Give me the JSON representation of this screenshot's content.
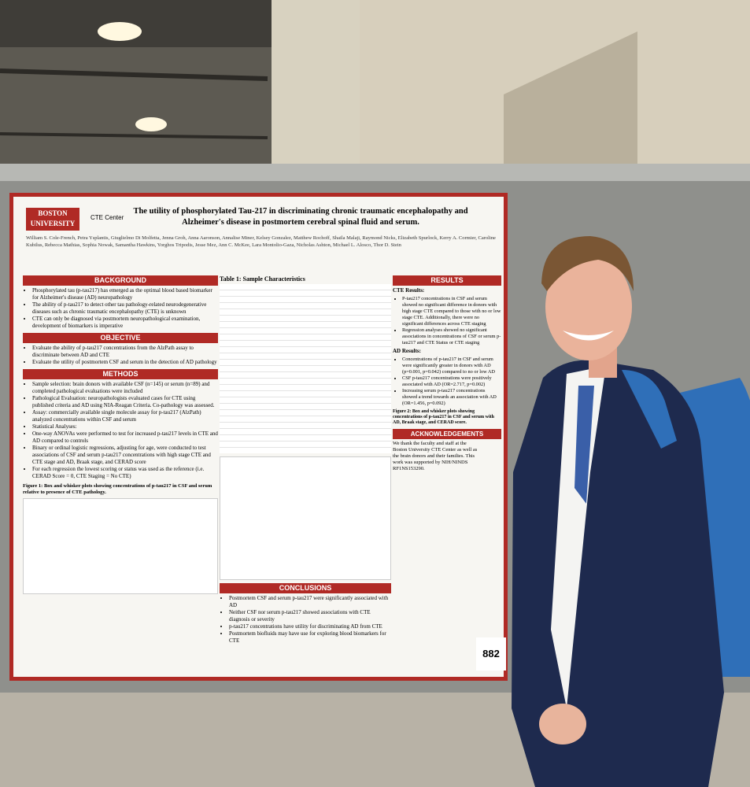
{
  "poster": {
    "logo": "BOSTON UNIVERSITY",
    "center": "CTE Center",
    "title": "The utility of phosphorylated Tau-217 in discriminating chronic traumatic encephalopathy and Alzheimer's disease in postmortem cerebral spinal fluid and serum.",
    "authors": "William S. Cole-French, Petra Ysplantis, Giuglielmo Di Molfetta, Jenna Groh, Anna Aaronson, Annalise Miner, Kelsey Gonzalez, Matthew Rochoff, Shaila Malaji, Raymond Nicks, Elizabeth Spurlock, Kerry A. Cormier, Caroline Kubilus, Rebecca Mathias, Sophia Nowak, Samantha Hawkins, Yorghos Tripodis, Jesse Mez, Ann C. McKee, Lara Montolio-Gaza, Nicholas Ashton, Michael L. Alosco, Thor D. Stein",
    "background": {
      "heading": "BACKGROUND",
      "items": [
        "Phosphorylated tau (p-tau217) has emerged as the optimal blood based biomarker for Alzheimer's disease (AD) neuropathology",
        "The ability of p-tau217 to detect other tau pathology-related neurodegenerative diseases such as chronic traumatic encephalopathy (CTE) is unknown",
        "CTE can only be diagnosed via postmortem neuropathological examination, development of biomarkers is imperative"
      ]
    },
    "objective": {
      "heading": "OBJECTIVE",
      "items": [
        "Evaluate the ability of p-tau217 concentrations from the AlzPath assay to discriminate between AD and CTE",
        "Evaluate the utility of postmortem CSF and serum in the detection of AD pathology"
      ]
    },
    "methods": {
      "heading": "METHODS",
      "items": [
        "Sample selection: brain donors with available CSF (n=145) or serum (n=89) and completed pathological evaluations were included",
        "Pathological Evaluation: neuropathologists evaluated cases for CTE using published criteria and AD using NIA-Reagan Criteria. Co-pathology was assessed.",
        "Assay: commercially available single molecule assay for p-tau217 (AlzPath) analyzed concentrations within CSF and serum",
        "Statistical Analyses:",
        "One-way ANOVAs were performed to test for increased p-tau217 levels in CTE and AD compared to controls",
        "Binary or ordinal logistic regressions, adjusting for age, were conducted to test associations of CSF and serum p-tau217 concentrations with high stage CTE and CTE stage and AD, Braak stage, and CERAD score",
        "For each regression the lowest scoring or status was used as the reference (i.e. CERAD Score = 0, CTE Staging = No CTE)"
      ]
    },
    "figure1": "Figure 1: Box and whisker plots showing concentrations of p-tau217 in CSF and serum relative to presence of CTE pathology.",
    "table_title": "Table 1: Sample Characteristics",
    "results": {
      "heading": "RESULTS",
      "cte_heading": "CTE Results:",
      "cte_items": [
        "P-tau217 concentrations in CSF and serum showed no significant difference in donors with high stage CTE compared to those with no or low stage CTE. Additionally, there were no significant differences across CTE staging",
        "Regression analyses showed no significant associations in concentrations of CSF or serum p-tau217 and CTE Status or CTE staging"
      ],
      "ad_heading": "AD Results:",
      "ad_items": [
        "Concentrations of p-tau217 in CSF and serum were significantly greater in donors with AD (p=0.001, p=0.042) compared to no or low AD",
        "CSF p-tau217 concentrations were positively associated with AD (OR=2.717, p=0.002)",
        "Increasing serum p-tau217 concentrations showed a trend towards an association with AD (OR=1.456, p=0.092)"
      ]
    },
    "figure2": "Figure 2: Box and whisker plots showing concentrations of p-tau217 in CSF and serum with AD, Braak stage, and CERAD score.",
    "conclusions": {
      "heading": "CONCLUSIONS",
      "items": [
        "Postmortem CSF and serum p-tau217 were significantly associated with AD",
        "Neither CSF nor serum p-tau217 showed associations with CTE diagnosis or severity",
        "p-tau217 concentrations have utility for discriminating AD from CTE",
        "Postmortem biofluids may have use for exploring blood biomarkers for CTE"
      ]
    },
    "acknowledgements": {
      "heading": "ACKNOWLEDGEMENTS",
      "text": "We thank the faculty and staff at the Boston University CTE Center as well as the brain donors and their families. This work was supported by NIH/NINDS RF1NS153290."
    },
    "board_number": "882"
  }
}
